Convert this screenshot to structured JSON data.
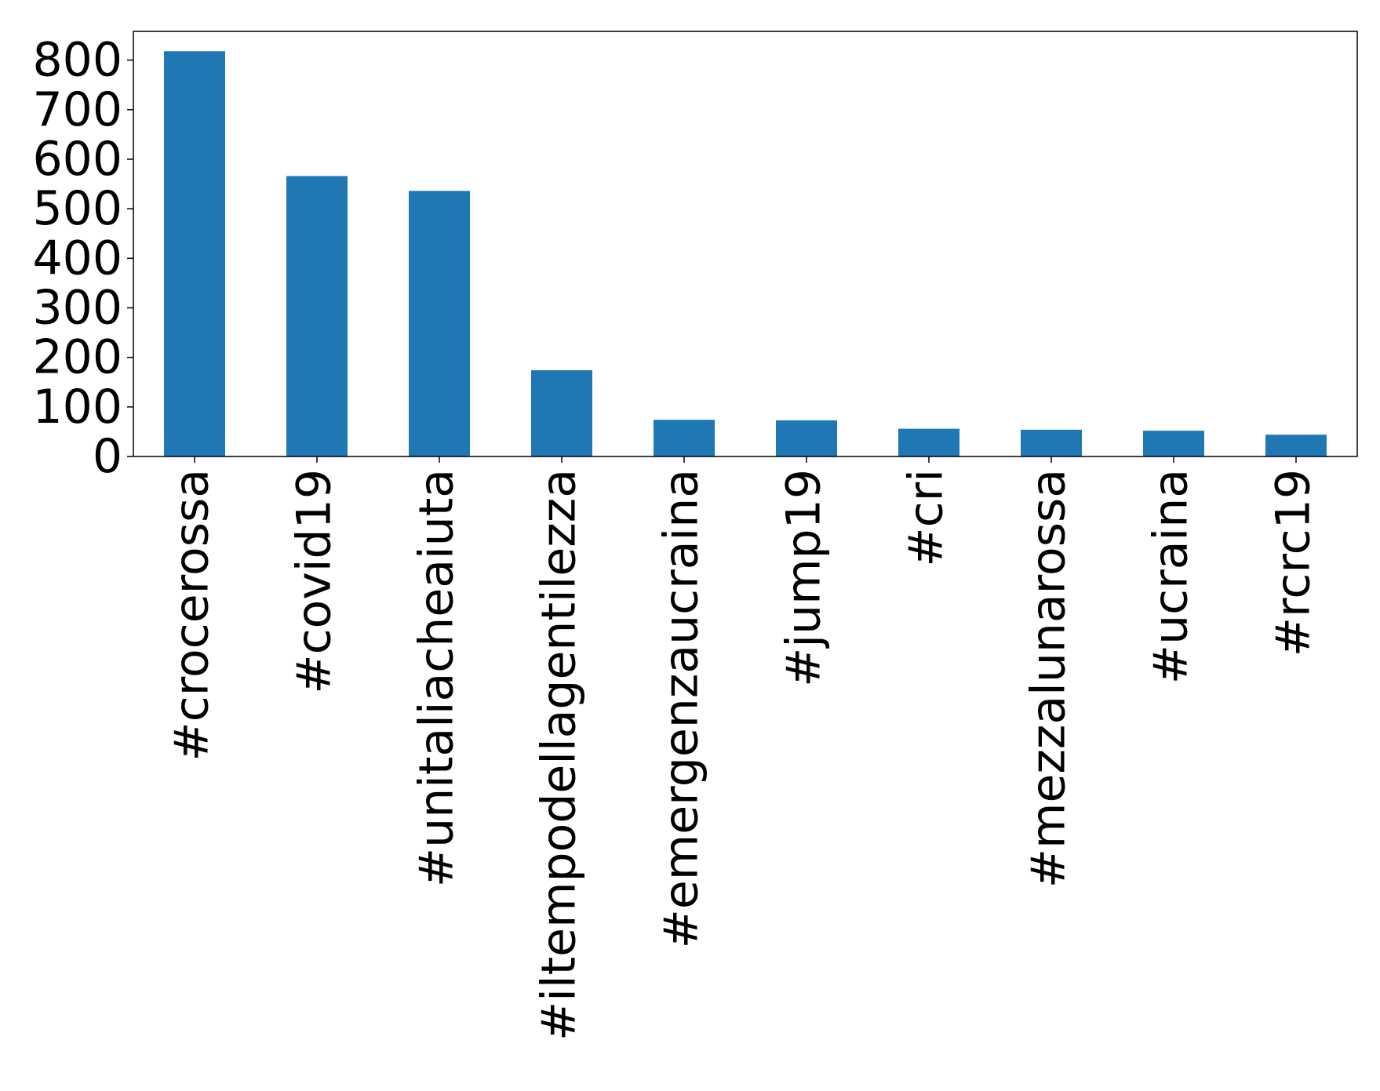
{
  "chart_data": {
    "type": "bar",
    "title": "",
    "xlabel": "",
    "ylabel": "",
    "categories": [
      "#crocerossa",
      "#covid19",
      "#unitaliacheaiuta",
      "#iltempodellagentilezza",
      "#emergenzaucraina",
      "#jump19",
      "#cri",
      "#mezzalunarossa",
      "#ucraina",
      "#rcrc19"
    ],
    "values": [
      818,
      566,
      536,
      174,
      74,
      73,
      56,
      54,
      52,
      44
    ],
    "ylim": [
      0,
      858
    ],
    "yticks": [
      0,
      100,
      200,
      300,
      400,
      500,
      600,
      700,
      800
    ],
    "grid": false,
    "legend": "none",
    "bar_color": "#1f77b4"
  }
}
